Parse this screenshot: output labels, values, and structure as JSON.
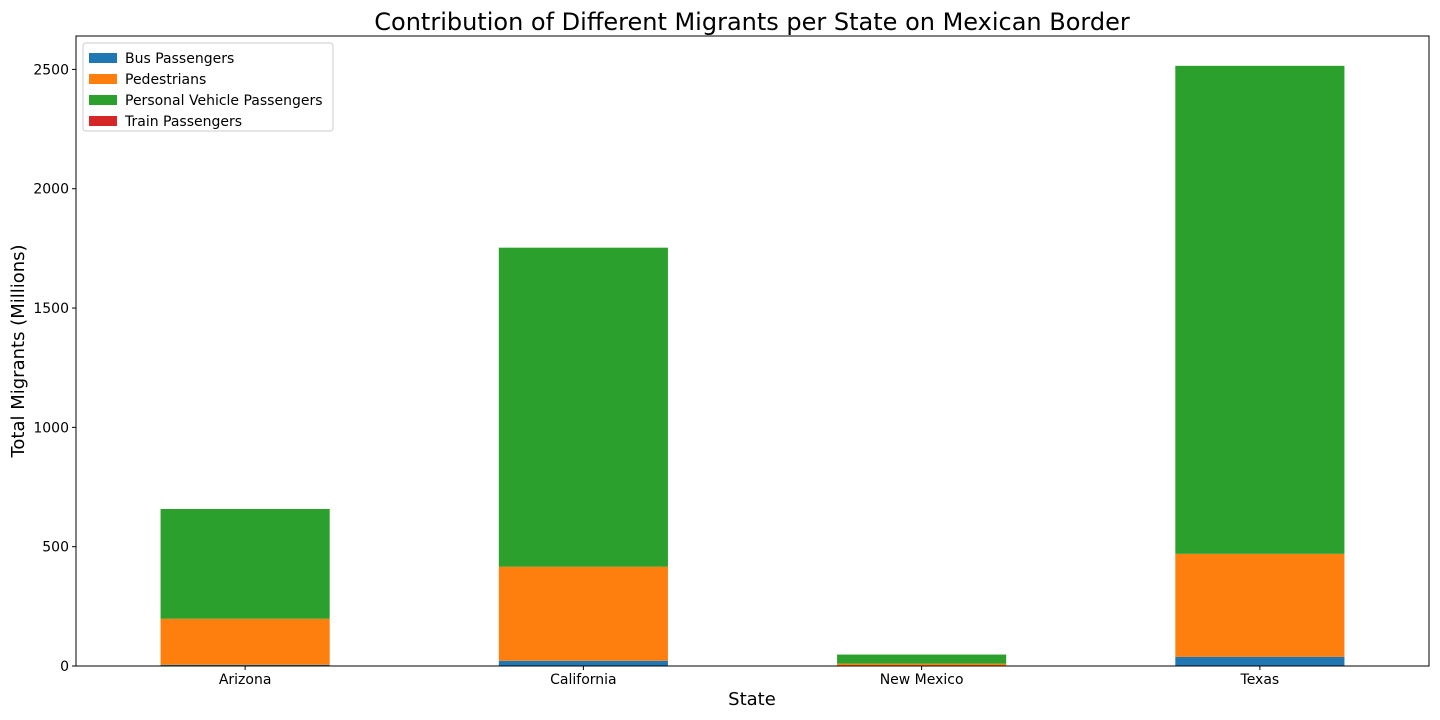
{
  "chart_data": {
    "type": "bar",
    "stacked": true,
    "title": "Contribution of Different Migrants per State on Mexican Border",
    "xlabel": "State",
    "ylabel": "Total Migrants (Millions)",
    "categories": [
      "Arizona",
      "California",
      "New Mexico",
      "Texas"
    ],
    "series": [
      {
        "name": "Bus Passengers",
        "color": "#1f77b4",
        "values": [
          5,
          22,
          1,
          38
        ]
      },
      {
        "name": "Pedestrians",
        "color": "#ff7f0e",
        "values": [
          193,
          394,
          9,
          432
        ]
      },
      {
        "name": "Personal Vehicle Passengers",
        "color": "#2ca02c",
        "values": [
          460,
          1337,
          38,
          2045
        ]
      },
      {
        "name": "Train Passengers",
        "color": "#d62728",
        "values": [
          0,
          0,
          0,
          0
        ]
      }
    ],
    "ylim": [
      0,
      2640
    ],
    "yticks": [
      0,
      500,
      1000,
      1500,
      2000,
      2500
    ],
    "grid": false,
    "legend_position": "top-left"
  }
}
